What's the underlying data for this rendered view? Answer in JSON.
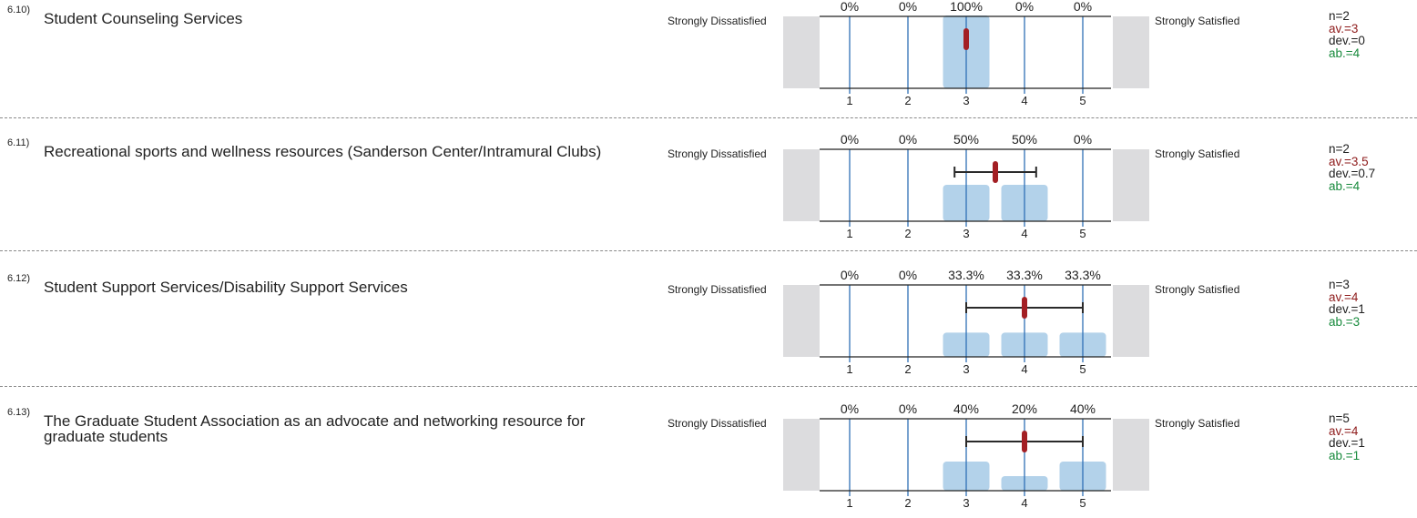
{
  "scale": {
    "left_label": "Strongly Dissatisfied",
    "right_label": "Strongly Satisfied",
    "ticks": [
      "1",
      "2",
      "3",
      "4",
      "5"
    ]
  },
  "colors": {
    "bar": "#b3d2ea",
    "gridline": "#2f6fb5",
    "marker": "#a31f24",
    "average_text": "#8e1b1b",
    "abstain_text": "#178a3c",
    "side_box": "#dcdcde"
  },
  "chart_data": [
    {
      "type": "bar",
      "number": "6.10)",
      "question": "Student Counseling Services",
      "categories": [
        "1",
        "2",
        "3",
        "4",
        "5"
      ],
      "percent_labels": [
        "0%",
        "0%",
        "100%",
        "0%",
        "0%"
      ],
      "values": [
        0,
        0,
        100,
        0,
        0
      ],
      "mean": 3,
      "sd": 0,
      "n": "n=2",
      "av": "av.=3",
      "dev": "dev.=0",
      "ab": "ab.=4"
    },
    {
      "type": "bar",
      "number": "6.11)",
      "question": "Recreational sports and wellness resources (Sanderson Center/Intramural Clubs)",
      "categories": [
        "1",
        "2",
        "3",
        "4",
        "5"
      ],
      "percent_labels": [
        "0%",
        "0%",
        "50%",
        "50%",
        "0%"
      ],
      "values": [
        0,
        0,
        50,
        50,
        0
      ],
      "mean": 3.5,
      "sd": 0.7,
      "n": "n=2",
      "av": "av.=3.5",
      "dev": "dev.=0.7",
      "ab": "ab.=4"
    },
    {
      "type": "bar",
      "number": "6.12)",
      "question": "Student Support Services/Disability Support Services",
      "categories": [
        "1",
        "2",
        "3",
        "4",
        "5"
      ],
      "percent_labels": [
        "0%",
        "0%",
        "33.3%",
        "33.3%",
        "33.3%"
      ],
      "values": [
        0,
        0,
        33.3,
        33.3,
        33.3
      ],
      "mean": 4,
      "sd": 1,
      "n": "n=3",
      "av": "av.=4",
      "dev": "dev.=1",
      "ab": "ab.=3"
    },
    {
      "type": "bar",
      "number": "6.13)",
      "question": "The Graduate Student Association as an advocate and networking resource for graduate students",
      "categories": [
        "1",
        "2",
        "3",
        "4",
        "5"
      ],
      "percent_labels": [
        "0%",
        "0%",
        "40%",
        "20%",
        "40%"
      ],
      "values": [
        0,
        0,
        40,
        20,
        40
      ],
      "mean": 4,
      "sd": 1,
      "n": "n=5",
      "av": "av.=4",
      "dev": "dev.=1",
      "ab": "ab.=1"
    }
  ]
}
